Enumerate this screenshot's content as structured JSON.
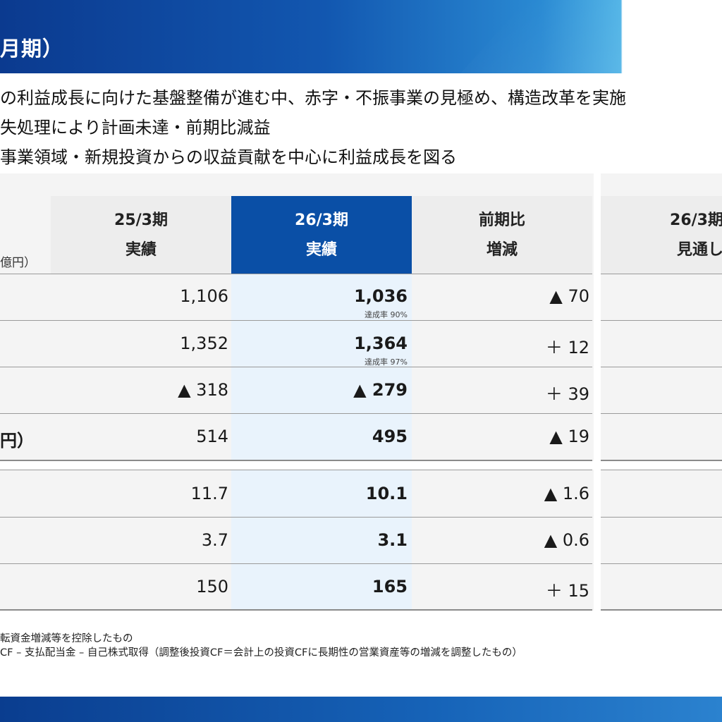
{
  "header": {
    "title": "月期）"
  },
  "bullets": [
    "の利益成長に向けた基盤整備が進む中、赤字・不振事業の見極め、構造改革を実施",
    "失処理により計画未達・前期比減益",
    "事業領域・新規投資からの収益貢献を中心に利益成長を図る"
  ],
  "table": {
    "unit": "億円）",
    "columns": {
      "prev": [
        "25/3期",
        "実績"
      ],
      "cur": [
        "26/3期",
        "実績"
      ],
      "diff": [
        "前期比",
        "増減"
      ],
      "outlook": [
        "26/3期",
        "見通し"
      ]
    },
    "rows": [
      {
        "label": "",
        "prev": "1,106",
        "cur": "1,036",
        "sub": "達成率  90%",
        "diff": "▲ 70"
      },
      {
        "label": "",
        "prev": "1,352",
        "cur": "1,364",
        "sub": "達成率  97%",
        "diff": "＋ 12"
      },
      {
        "label": "",
        "prev": "▲ 318",
        "cur": "▲ 279",
        "sub": "",
        "diff": "＋ 39"
      },
      {
        "label": "円）",
        "prev": "514",
        "cur": "495",
        "sub": "",
        "diff": "▲ 19"
      },
      {
        "label": "",
        "prev": "11.7",
        "cur": "10.1",
        "sub": "",
        "diff": "▲ 1.6"
      },
      {
        "label": "",
        "prev": "3.7",
        "cur": "3.1",
        "sub": "",
        "diff": "▲ 0.6"
      },
      {
        "label": "",
        "prev": "150",
        "cur": "165",
        "sub": "",
        "diff": "＋ 15"
      }
    ]
  },
  "notes": [
    "転資金増減等を控除したもの",
    "CF – 支払配当金 – 自己株式取得（調整後投資CF＝会計上の投資CFに長期性の営業資産等の増減を調整したもの）"
  ]
}
